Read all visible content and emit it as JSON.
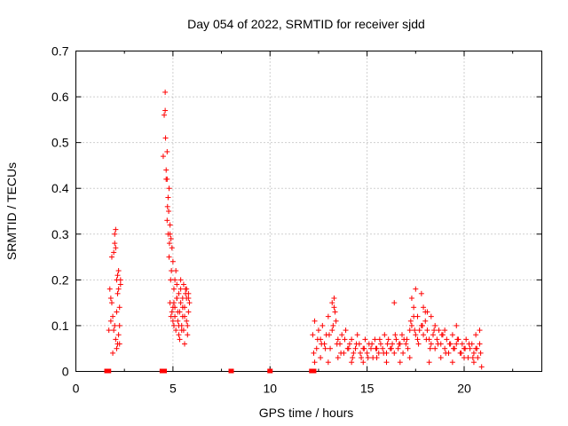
{
  "chart_data": {
    "type": "scatter",
    "title": "Day 054 of 2022, SRMTID for receiver sjdd",
    "xlabel": "GPS time / hours",
    "ylabel": "SRMTID / TECUs",
    "xlim": [
      0,
      24
    ],
    "ylim": [
      0,
      0.7
    ],
    "xticks": [
      "0",
      "5",
      "10",
      "15",
      "20"
    ],
    "xtick_values": [
      0,
      5,
      10,
      15,
      20
    ],
    "yticks": [
      "0",
      "0.1",
      "0.2",
      "0.3",
      "0.4",
      "0.5",
      "0.6",
      "0.7"
    ],
    "ytick_values": [
      0,
      0.1,
      0.2,
      0.3,
      0.4,
      0.5,
      0.6,
      0.7
    ],
    "grid": true,
    "marker": "+",
    "series_color": "#ff0000",
    "series": [
      {
        "name": "SRMTID",
        "x": [
          1.7,
          1.75,
          1.8,
          1.85,
          1.9,
          1.95,
          2.0,
          2.0,
          2.05,
          2.05,
          2.1,
          2.1,
          2.15,
          2.15,
          2.2,
          2.2,
          2.25,
          2.25,
          2.3,
          1.8,
          1.9,
          2.0,
          2.1,
          2.2,
          2.3,
          1.85,
          1.95,
          2.05,
          2.15,
          2.25,
          4.5,
          4.55,
          4.6,
          4.6,
          4.62,
          4.65,
          4.7,
          4.72,
          4.75,
          4.8,
          4.8,
          4.85,
          4.85,
          4.9,
          4.9,
          4.95,
          4.95,
          5.0,
          5.0,
          5.05,
          5.05,
          5.1,
          5.1,
          5.15,
          5.15,
          5.2,
          5.2,
          5.25,
          5.3,
          5.3,
          5.35,
          5.35,
          5.4,
          5.4,
          5.45,
          5.5,
          5.5,
          5.55,
          5.55,
          5.6,
          5.6,
          5.65,
          5.7,
          5.7,
          5.75,
          5.8,
          5.8,
          5.85,
          4.7,
          4.75,
          4.78,
          4.82,
          4.88,
          4.92,
          5.0,
          5.1,
          5.2,
          5.3,
          5.4,
          5.5,
          5.6,
          5.7,
          5.75,
          5.8,
          4.65,
          4.7,
          4.85,
          5.05,
          5.25,
          5.45,
          5.65,
          12.2,
          12.3,
          12.4,
          12.5,
          12.6,
          12.7,
          12.8,
          12.9,
          13.0,
          13.1,
          13.2,
          13.3,
          13.4,
          13.5,
          13.6,
          13.7,
          13.8,
          13.9,
          14.0,
          14.1,
          14.2,
          14.3,
          14.4,
          14.5,
          14.6,
          14.7,
          14.8,
          14.9,
          15.0,
          15.1,
          15.2,
          15.3,
          15.4,
          15.5,
          15.6,
          15.7,
          15.8,
          15.9,
          16.0,
          16.1,
          16.2,
          16.3,
          16.4,
          16.5,
          16.6,
          16.7,
          16.8,
          16.9,
          17.0,
          17.1,
          17.2,
          17.3,
          17.4,
          17.5,
          17.6,
          17.7,
          17.8,
          17.9,
          18.0,
          18.1,
          18.2,
          18.3,
          18.4,
          18.5,
          18.6,
          18.7,
          18.8,
          18.9,
          19.0,
          19.1,
          19.2,
          19.3,
          19.4,
          19.5,
          19.6,
          19.7,
          19.8,
          19.9,
          20.0,
          20.1,
          20.2,
          20.3,
          20.4,
          20.5,
          20.6,
          20.7,
          20.8,
          12.25,
          12.45,
          12.65,
          12.85,
          13.05,
          13.25,
          13.45,
          13.65,
          13.85,
          14.05,
          14.25,
          14.45,
          14.65,
          14.85,
          15.05,
          15.25,
          15.45,
          15.65,
          15.85,
          16.05,
          16.25,
          16.45,
          16.65,
          16.85,
          17.05,
          17.25,
          17.45,
          17.65,
          17.85,
          18.05,
          18.25,
          18.45,
          18.65,
          18.85,
          19.05,
          19.25,
          19.45,
          19.65,
          19.85,
          20.05,
          20.25,
          20.45,
          20.65,
          20.85,
          13.2,
          13.3,
          13.35,
          16.4,
          17.3,
          17.4,
          17.5,
          17.6,
          17.8,
          17.9,
          18.0,
          18.1,
          18.3,
          18.5,
          19.0,
          19.6,
          20.6,
          20.8,
          12.3,
          12.6,
          13.0,
          13.5,
          14.2,
          14.8,
          15.5,
          16.0,
          16.7,
          17.2,
          18.2,
          18.8,
          19.4,
          20.0,
          20.5,
          20.9
        ],
        "y": [
          0.09,
          0.18,
          0.16,
          0.25,
          0.12,
          0.26,
          0.3,
          0.1,
          0.31,
          0.07,
          0.2,
          0.05,
          0.21,
          0.17,
          0.08,
          0.22,
          0.14,
          0.06,
          0.19,
          0.11,
          0.04,
          0.28,
          0.13,
          0.18,
          0.2,
          0.15,
          0.09,
          0.27,
          0.06,
          0.1,
          0.47,
          0.56,
          0.61,
          0.57,
          0.51,
          0.44,
          0.42,
          0.36,
          0.3,
          0.25,
          0.4,
          0.32,
          0.15,
          0.29,
          0.12,
          0.13,
          0.27,
          0.11,
          0.24,
          0.18,
          0.1,
          0.2,
          0.14,
          0.22,
          0.09,
          0.16,
          0.19,
          0.11,
          0.08,
          0.17,
          0.13,
          0.07,
          0.15,
          0.18,
          0.1,
          0.12,
          0.16,
          0.09,
          0.19,
          0.06,
          0.14,
          0.18,
          0.11,
          0.16,
          0.08,
          0.17,
          0.13,
          0.15,
          0.33,
          0.38,
          0.35,
          0.28,
          0.2,
          0.22,
          0.14,
          0.12,
          0.16,
          0.1,
          0.2,
          0.14,
          0.12,
          0.18,
          0.1,
          0.16,
          0.42,
          0.48,
          0.3,
          0.15,
          0.13,
          0.09,
          0.17,
          0.08,
          0.11,
          0.05,
          0.09,
          0.07,
          0.1,
          0.06,
          0.08,
          0.12,
          0.05,
          0.09,
          0.14,
          0.11,
          0.07,
          0.06,
          0.08,
          0.04,
          0.09,
          0.05,
          0.06,
          0.07,
          0.04,
          0.05,
          0.08,
          0.06,
          0.03,
          0.05,
          0.07,
          0.04,
          0.06,
          0.05,
          0.03,
          0.07,
          0.05,
          0.04,
          0.06,
          0.05,
          0.08,
          0.04,
          0.07,
          0.05,
          0.06,
          0.04,
          0.07,
          0.05,
          0.06,
          0.08,
          0.07,
          0.06,
          0.05,
          0.09,
          0.1,
          0.12,
          0.08,
          0.07,
          0.09,
          0.1,
          0.08,
          0.13,
          0.09,
          0.07,
          0.06,
          0.08,
          0.05,
          0.07,
          0.09,
          0.06,
          0.08,
          0.05,
          0.07,
          0.04,
          0.06,
          0.08,
          0.05,
          0.06,
          0.07,
          0.04,
          0.06,
          0.05,
          0.07,
          0.03,
          0.05,
          0.06,
          0.04,
          0.05,
          0.03,
          0.06,
          0.04,
          0.07,
          0.06,
          0.05,
          0.08,
          0.1,
          0.06,
          0.04,
          0.07,
          0.05,
          0.03,
          0.06,
          0.04,
          0.05,
          0.03,
          0.06,
          0.05,
          0.07,
          0.04,
          0.06,
          0.05,
          0.08,
          0.06,
          0.04,
          0.07,
          0.11,
          0.09,
          0.06,
          0.1,
          0.07,
          0.05,
          0.09,
          0.06,
          0.08,
          0.04,
          0.06,
          0.05,
          0.07,
          0.04,
          0.05,
          0.06,
          0.03,
          0.05,
          0.04,
          0.15,
          0.16,
          0.13,
          0.15,
          0.16,
          0.14,
          0.18,
          0.12,
          0.17,
          0.14,
          0.11,
          0.13,
          0.12,
          0.1,
          0.09,
          0.1,
          0.08,
          0.09,
          0.02,
          0.03,
          0.02,
          0.03,
          0.02,
          0.02,
          0.03,
          0.02,
          0.02,
          0.03,
          0.02,
          0.03,
          0.02,
          0.03,
          0.02,
          0.01
        ]
      }
    ],
    "zero_points_x": [
      1.6,
      1.68,
      4.45,
      4.55,
      8.0,
      10.0,
      12.15,
      12.25
    ]
  }
}
